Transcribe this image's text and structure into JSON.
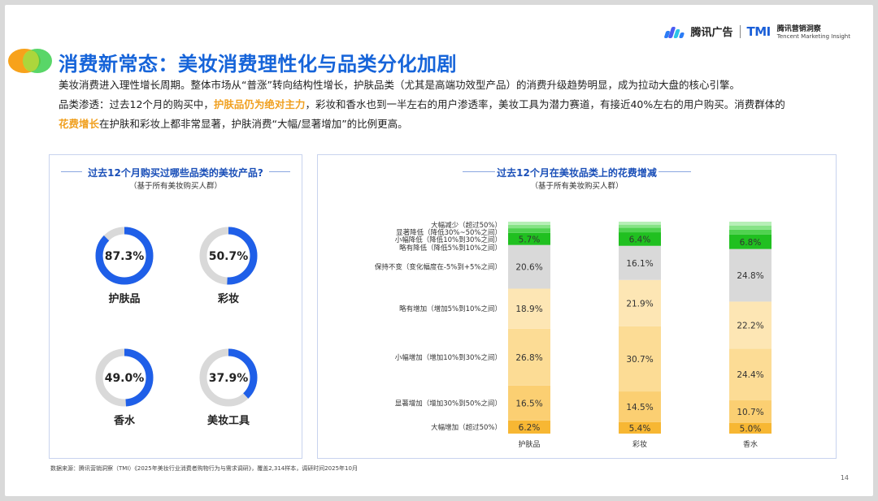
{
  "header": {
    "brand_name": "腾讯广告",
    "tmi_logo": "TMI",
    "tmi_name": "腾讯营销洞察",
    "tmi_sub": "Tencent Marketing Insight"
  },
  "title": "消费新常态：美妆消费理性化与品类分化加剧",
  "paragraphs": {
    "p1": "美妆消费进入理性增长周期。整体市场从“普涨”转向结构性增长，护肤品类（尤其是高端功效型产品）的消费升级趋势明显，成为拉动大盘的核心引擎。",
    "p2_a": "品类渗透：过去12个月的购买中，",
    "p2_hl": "护肤品仍为绝对主力",
    "p2_b": "，彩妆和香水也到一半左右的用户渗透率，美妆工具为潜力赛道，有接近40%左右的用户购买。消费群体的",
    "p3_hl": "花费增长",
    "p3_b": "在护肤和彩妆上都非常显著，护肤消费“大幅/显著增加”的比例更高。"
  },
  "left_panel": {
    "title": "过去12个月购买过哪些品类的美妆产品?",
    "subtitle": "（基于所有美妆购买人群）"
  },
  "right_panel": {
    "title": "过去12个月在美妆品类上的花费增减",
    "subtitle": "（基于所有美妆购买人群）"
  },
  "footer": "数据来源：腾讯营销洞察（TMI）《2025年美妆行业消费者购物行为与需求调研》，覆盖2,314样本，调研时间2025年10月",
  "page_number": "14",
  "colors": {
    "accent": "#1664d9",
    "donut_fill": "#1f5fe8",
    "donut_track": "#d9d9d9",
    "highlight": "#f0a020"
  },
  "chart_data": [
    {
      "type": "pie",
      "variant": "donut",
      "items": [
        {
          "label": "护肤品",
          "value": 87.3,
          "display": "87.3%"
        },
        {
          "label": "彩妆",
          "value": 50.7,
          "display": "50.7%"
        },
        {
          "label": "香水",
          "value": 49.0,
          "display": "49.0%"
        },
        {
          "label": "美妆工具",
          "value": 37.9,
          "display": "37.9%"
        }
      ]
    },
    {
      "type": "bar",
      "stacked": true,
      "categories": [
        "护肤品",
        "彩妆",
        "香水"
      ],
      "series": [
        {
          "name": "大幅增加（超过50%）",
          "color": "#f7b733",
          "values": [
            6.2,
            5.4,
            5.0
          ],
          "labels": [
            "6.2%",
            "5.4%",
            "5.0%"
          ]
        },
        {
          "name": "显著增加（增加30%到50%之间）",
          "color": "#fbcf72",
          "values": [
            16.5,
            14.5,
            10.7
          ],
          "labels": [
            "16.5%",
            "14.5%",
            "10.7%"
          ]
        },
        {
          "name": "小幅增加（增加10%到30%之间）",
          "color": "#fcdc95",
          "values": [
            26.8,
            30.7,
            24.4
          ],
          "labels": [
            "26.8%",
            "30.7%",
            "24.4%"
          ]
        },
        {
          "name": "略有增加（增加5%到10%之间）",
          "color": "#fde6b4",
          "values": [
            18.9,
            21.9,
            22.2
          ],
          "labels": [
            "18.9%",
            "21.9%",
            "22.2%"
          ]
        },
        {
          "name": "保持不变（变化幅度在-5%到+5%之间）",
          "color": "#d9d9d9",
          "values": [
            20.6,
            16.1,
            24.8
          ],
          "labels": [
            "20.6%",
            "16.1%",
            "24.8%"
          ]
        },
        {
          "name": "略有降低（降低5%到10%之间）",
          "color": "#20c020",
          "values": [
            5.7,
            6.4,
            6.8
          ],
          "labels": [
            "5.7%",
            "6.4%",
            "6.8%"
          ]
        },
        {
          "name": "小幅降低（降低10%到30%之间）",
          "color": "#4fd24f",
          "values": [
            2.2,
            2.1,
            2.3
          ],
          "labels": []
        },
        {
          "name": "显著降低（降低30%~50%之间）",
          "color": "#86e386",
          "values": [
            1.6,
            1.5,
            2.0
          ],
          "labels": []
        },
        {
          "name": "大幅减少（超过50%）",
          "color": "#b7efb7",
          "values": [
            1.5,
            1.4,
            1.8
          ],
          "labels": []
        }
      ],
      "ylim": [
        0,
        100
      ]
    }
  ]
}
